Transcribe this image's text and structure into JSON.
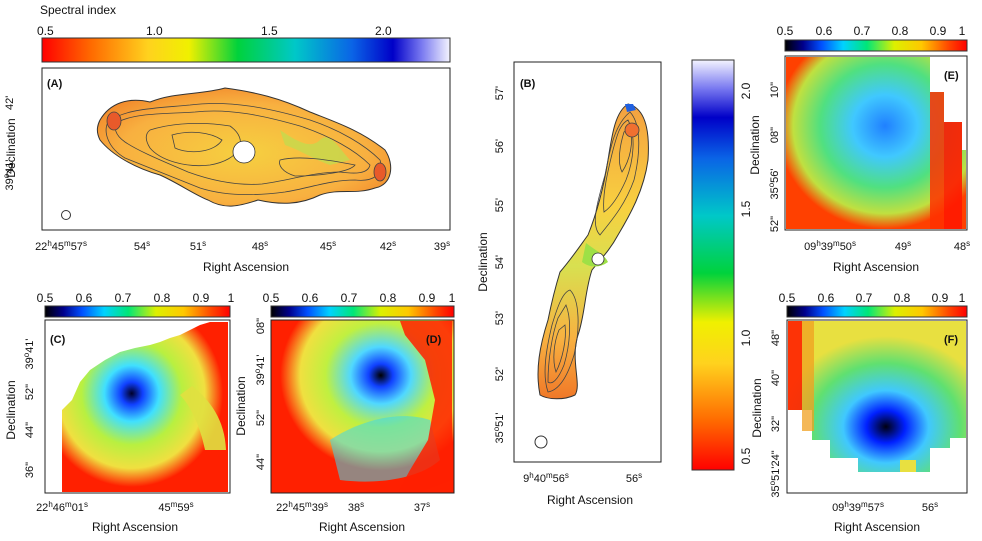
{
  "colorbar_title": "Spectral index",
  "axis_labels": {
    "ra": "Right Ascension",
    "dec": "Declination"
  },
  "panels": {
    "A": {
      "label": "(A)",
      "colorbar_ticks": [
        "0.5",
        "1.0",
        "1.5",
        "2.0"
      ],
      "xticks": [
        [
          "22",
          "h",
          "45",
          "m",
          "57",
          "s"
        ],
        [
          "54",
          "s"
        ],
        [
          "51",
          "s"
        ],
        [
          "48",
          "s"
        ],
        [
          "45",
          "s"
        ],
        [
          "42",
          "s"
        ],
        [
          "39",
          "s"
        ]
      ],
      "yticks": [
        [
          "42",
          "'"
        ],
        [
          "39",
          "o",
          "41",
          "'"
        ]
      ]
    },
    "B": {
      "label": "(B)",
      "colorbar_ticks": [
        "2.0",
        "1.5",
        "1.0",
        "0.5"
      ],
      "xticks": [
        [
          "9",
          "h",
          "40",
          "m",
          "56",
          "s"
        ],
        [
          "56",
          "s"
        ]
      ],
      "yticks": [
        [
          "57",
          "'"
        ],
        [
          "56",
          "'"
        ],
        [
          "55",
          "'"
        ],
        [
          "54",
          "'"
        ],
        [
          "53",
          "'"
        ],
        [
          "52",
          "'"
        ],
        [
          "35",
          "o",
          "51",
          "'"
        ]
      ]
    },
    "C": {
      "label": "(C)",
      "colorbar_ticks": [
        "0.5",
        "0.6",
        "0.7",
        "0.8",
        "0.9",
        "1"
      ],
      "xticks": [
        [
          "22",
          "h",
          "46",
          "m",
          "01",
          "s"
        ],
        [
          "45",
          "m",
          "59",
          "s"
        ]
      ],
      "yticks": [
        [
          "39",
          "o",
          "41",
          "'"
        ],
        [
          "52",
          "\""
        ],
        [
          "44",
          "\""
        ],
        [
          "36",
          "\""
        ]
      ]
    },
    "D": {
      "label": "(D)",
      "colorbar_ticks": [
        "0.5",
        "0.6",
        "0.7",
        "0.8",
        "0.9",
        "1"
      ],
      "xticks": [
        [
          "22",
          "h",
          "45",
          "m",
          "39",
          "s"
        ],
        [
          "38",
          "s"
        ],
        [
          "37",
          "s"
        ]
      ],
      "yticks": [
        [
          "08",
          "\""
        ],
        [
          "39",
          "o",
          "41",
          "'"
        ],
        [
          "52",
          "\""
        ],
        [
          "44",
          "\""
        ]
      ]
    },
    "E": {
      "label": "(E)",
      "colorbar_ticks": [
        "0.5",
        "0.6",
        "0.7",
        "0.8",
        "0.9",
        "1"
      ],
      "xticks": [
        [
          "09",
          "h",
          "39",
          "m",
          "50",
          "s"
        ],
        [
          "49",
          "s"
        ],
        [
          "48",
          "s"
        ]
      ],
      "yticks": [
        [
          "10",
          "\""
        ],
        [
          "08",
          "\""
        ],
        [
          "35",
          "o",
          "56",
          "'"
        ],
        [
          "52",
          "\""
        ]
      ]
    },
    "F": {
      "label": "(F)",
      "colorbar_ticks": [
        "0.5",
        "0.6",
        "0.7",
        "0.8",
        "0.9",
        "1"
      ],
      "xticks": [
        [
          "09",
          "h",
          "39",
          "m",
          "57",
          "s"
        ],
        [
          "56",
          "s"
        ]
      ],
      "yticks": [
        [
          "48",
          "\""
        ],
        [
          "40",
          "\""
        ],
        [
          "32",
          "\""
        ],
        [
          "35",
          "o",
          "51",
          "'",
          "24",
          "\""
        ]
      ]
    }
  }
}
